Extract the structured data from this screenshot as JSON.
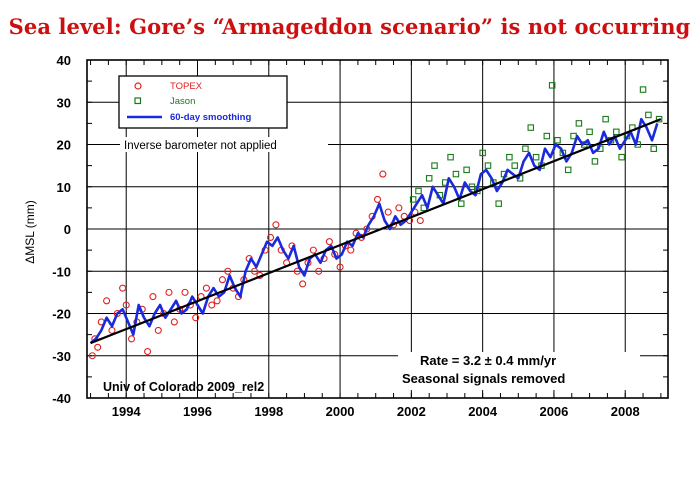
{
  "headline": "Sea level: Gore’s “Armageddon scenario” is not occurring",
  "chart_data": {
    "type": "scatter",
    "title": "",
    "xlabel": "",
    "ylabel": "ΔMSL (mm)",
    "xlim": [
      1992.9,
      2009.2
    ],
    "ylim": [
      -40,
      40
    ],
    "grid": true,
    "xticks": [
      1994,
      1996,
      1998,
      2000,
      2002,
      2004,
      2006,
      2008
    ],
    "xtick_labels": [
      "1994",
      "1996",
      "1998",
      "2000",
      "2002",
      "2004",
      "2006",
      "2008"
    ],
    "yticks": [
      -40,
      -30,
      -20,
      -10,
      0,
      10,
      20,
      30,
      40
    ],
    "ytick_labels": [
      "-40",
      "-30",
      "-20",
      "-10",
      "0",
      "10",
      "20",
      "30",
      "40"
    ],
    "legend": {
      "placement": "top-left",
      "entries": [
        {
          "label": "TOPEX",
          "color": "#dd2222",
          "marker": "circle"
        },
        {
          "label": "Jason",
          "color": "#1a7a1a",
          "marker": "square"
        },
        {
          "label": "60-day smoothing",
          "color": "#1a2adc",
          "marker": "line"
        }
      ]
    },
    "annotations": {
      "barometer": "Inverse barometer not applied",
      "rate": "Rate = 3.2 ± 0.4 mm/yr",
      "seasonal": "Seasonal signals removed",
      "source": "Univ of Colorado 2009_rel2"
    },
    "trend": {
      "slope_mm_per_yr": 3.2,
      "x": [
        1993.0,
        2009.0
      ],
      "y": [
        -27.0,
        26.0
      ]
    },
    "series": [
      {
        "name": "TOPEX",
        "color": "#dd2222",
        "x": [
          1993.05,
          1993.12,
          1993.2,
          1993.3,
          1993.45,
          1993.6,
          1993.75,
          1993.9,
          1994.0,
          1994.15,
          1994.3,
          1994.45,
          1994.6,
          1994.75,
          1994.9,
          1995.05,
          1995.2,
          1995.35,
          1995.5,
          1995.65,
          1995.8,
          1995.95,
          1996.1,
          1996.25,
          1996.4,
          1996.55,
          1996.7,
          1996.85,
          1997.0,
          1997.15,
          1997.3,
          1997.45,
          1997.6,
          1997.75,
          1997.9,
          1998.05,
          1998.2,
          1998.35,
          1998.5,
          1998.65,
          1998.8,
          1998.95,
          1999.1,
          1999.25,
          1999.4,
          1999.55,
          1999.7,
          1999.85,
          2000.0,
          2000.15,
          2000.3,
          2000.45,
          2000.6,
          2000.75,
          2000.9,
          2001.05,
          2001.2,
          2001.35,
          2001.5,
          2001.65,
          2001.8,
          2001.95,
          2002.1,
          2002.25
        ],
        "y": [
          -30,
          -26,
          -28,
          -22,
          -17,
          -24,
          -20,
          -14,
          -18,
          -26,
          -22,
          -19,
          -29,
          -16,
          -24,
          -20,
          -15,
          -22,
          -19,
          -15,
          -18,
          -21,
          -16,
          -14,
          -18,
          -17,
          -12,
          -10,
          -14,
          -16,
          -12,
          -7,
          -10,
          -11,
          -5,
          -2,
          1,
          -5,
          -8,
          -4,
          -10,
          -13,
          -8,
          -5,
          -10,
          -7,
          -3,
          -6,
          -9,
          -4,
          -5,
          -1,
          -2,
          0,
          3,
          7,
          13,
          4,
          1,
          5,
          3,
          2,
          4,
          2
        ]
      },
      {
        "name": "Jason",
        "color": "#1a7a1a",
        "x": [
          2002.05,
          2002.2,
          2002.35,
          2002.5,
          2002.65,
          2002.8,
          2002.95,
          2003.1,
          2003.25,
          2003.4,
          2003.55,
          2003.7,
          2003.85,
          2004.0,
          2004.15,
          2004.3,
          2004.45,
          2004.6,
          2004.75,
          2004.9,
          2005.05,
          2005.2,
          2005.35,
          2005.5,
          2005.65,
          2005.8,
          2005.95,
          2006.1,
          2006.25,
          2006.4,
          2006.55,
          2006.7,
          2006.85,
          2007.0,
          2007.15,
          2007.3,
          2007.45,
          2007.6,
          2007.75,
          2007.9,
          2008.05,
          2008.2,
          2008.35,
          2008.5,
          2008.65,
          2008.8,
          2008.95
        ],
        "y": [
          7,
          9,
          5,
          12,
          15,
          8,
          11,
          17,
          13,
          6,
          14,
          10,
          9,
          18,
          15,
          11,
          6,
          13,
          17,
          15,
          12,
          19,
          24,
          17,
          15,
          22,
          34,
          21,
          18,
          14,
          22,
          25,
          20,
          23,
          16,
          19,
          26,
          21,
          23,
          17,
          22,
          24,
          20,
          33,
          27,
          19,
          26
        ]
      },
      {
        "name": "60-day smoothing",
        "color": "#1a2adc",
        "x": [
          1993.0,
          1993.15,
          1993.3,
          1993.45,
          1993.6,
          1993.75,
          1993.9,
          1994.05,
          1994.2,
          1994.35,
          1994.5,
          1994.65,
          1994.8,
          1994.95,
          1995.1,
          1995.25,
          1995.4,
          1995.55,
          1995.7,
          1995.85,
          1996.0,
          1996.15,
          1996.3,
          1996.45,
          1996.6,
          1996.75,
          1996.9,
          1997.05,
          1997.2,
          1997.35,
          1997.5,
          1997.65,
          1997.8,
          1997.95,
          1998.1,
          1998.25,
          1998.4,
          1998.55,
          1998.7,
          1998.85,
          1999.0,
          1999.15,
          1999.3,
          1999.45,
          1999.6,
          1999.75,
          1999.9,
          2000.05,
          2000.2,
          2000.35,
          2000.5,
          2000.65,
          2000.8,
          2000.95,
          2001.1,
          2001.25,
          2001.4,
          2001.55,
          2001.7,
          2001.85,
          2002.0,
          2002.15,
          2002.3,
          2002.45,
          2002.6,
          2002.75,
          2002.9,
          2003.05,
          2003.2,
          2003.35,
          2003.5,
          2003.65,
          2003.8,
          2003.95,
          2004.1,
          2004.25,
          2004.4,
          2004.55,
          2004.7,
          2004.85,
          2005.0,
          2005.15,
          2005.3,
          2005.45,
          2005.6,
          2005.75,
          2005.9,
          2006.05,
          2006.2,
          2006.35,
          2006.5,
          2006.65,
          2006.8,
          2006.95,
          2007.1,
          2007.25,
          2007.4,
          2007.55,
          2007.7,
          2007.85,
          2008.0,
          2008.15,
          2008.3,
          2008.45,
          2008.6,
          2008.75,
          2008.9
        ],
        "y": [
          -27,
          -26,
          -24,
          -21,
          -23,
          -20,
          -19,
          -22,
          -25,
          -18,
          -21,
          -23,
          -20,
          -18,
          -21,
          -19,
          -17,
          -20,
          -19,
          -16,
          -18,
          -20,
          -16,
          -14,
          -16,
          -15,
          -11,
          -14,
          -16,
          -10,
          -7,
          -9,
          -6,
          -3,
          -4,
          -2,
          -5,
          -7,
          -4,
          -9,
          -11,
          -7,
          -6,
          -8,
          -5,
          -4,
          -7,
          -6,
          -3,
          -4,
          -1,
          -2,
          1,
          3,
          6,
          2,
          0,
          3,
          1,
          2,
          4,
          6,
          8,
          5,
          10,
          8,
          6,
          12,
          10,
          7,
          11,
          9,
          8,
          13,
          14,
          12,
          9,
          11,
          14,
          13,
          12,
          16,
          18,
          15,
          14,
          19,
          17,
          20,
          19,
          16,
          18,
          22,
          20,
          21,
          18,
          19,
          23,
          20,
          22,
          19,
          21,
          23,
          20,
          26,
          24,
          21,
          25
        ]
      }
    ]
  }
}
